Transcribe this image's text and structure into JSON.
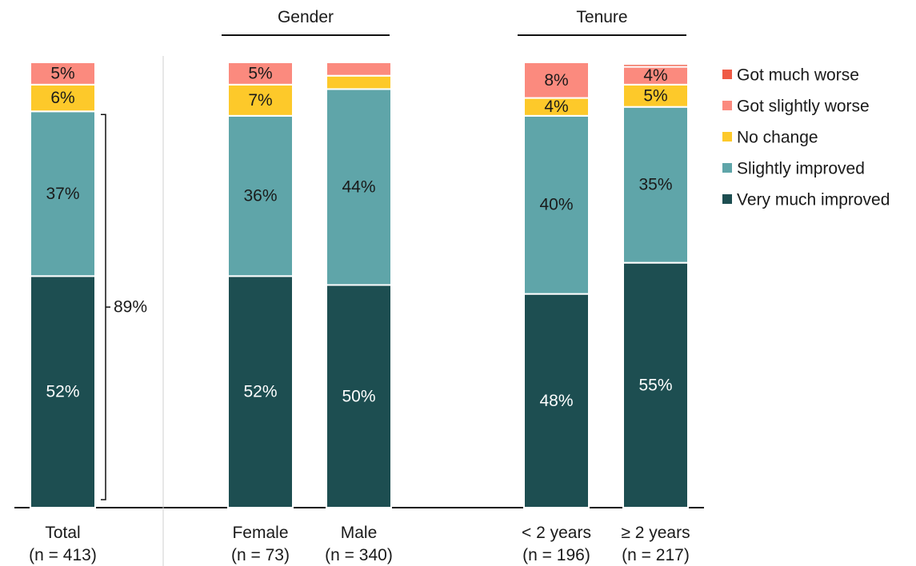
{
  "chart_data": {
    "type": "bar",
    "stacked": true,
    "orientation": "vertical",
    "categories": [
      "Total",
      "Female",
      "Male",
      "< 2 years",
      "≥ 2 years"
    ],
    "category_ns": [
      "(n = 413)",
      "(n = 73)",
      "(n = 340)",
      "(n = 196)",
      "(n = 217)"
    ],
    "groups": [
      {
        "label": "Gender",
        "categories": [
          "Female",
          "Male"
        ]
      },
      {
        "label": "Tenure",
        "categories": [
          "< 2 years",
          "≥ 2 years"
        ]
      }
    ],
    "series": [
      {
        "name": "Very much improved",
        "color": "#1d4e51",
        "values": [
          52,
          52,
          50,
          48,
          55
        ],
        "labels": [
          "52%",
          "52%",
          "50%",
          "48%",
          "55%"
        ]
      },
      {
        "name": "Slightly improved",
        "color": "#5fa5a9",
        "values": [
          37,
          36,
          44,
          40,
          35
        ],
        "labels": [
          "37%",
          "36%",
          "44%",
          "40%",
          "35%"
        ]
      },
      {
        "name": "No change",
        "color": "#fdc92a",
        "values": [
          6,
          7,
          3,
          4,
          5
        ],
        "labels": [
          "6%",
          "7%",
          "",
          "4%",
          "5%"
        ]
      },
      {
        "name": "Got slightly worse",
        "color": "#fb8a7e",
        "values": [
          5,
          5,
          3,
          8,
          4
        ],
        "labels": [
          "5%",
          "5%",
          "",
          "8%",
          "4%"
        ]
      },
      {
        "name": "Got much worse",
        "color": "#ef5a45",
        "values": [
          0,
          0,
          0,
          0,
          0.6
        ],
        "labels": [
          "",
          "",
          "",
          "",
          ""
        ]
      }
    ],
    "legend_order": [
      "Got much worse",
      "Got slightly worse",
      "No change",
      "Slightly improved",
      "Very much improved"
    ],
    "legend_position": "right",
    "bracket": {
      "category": "Total",
      "label": "89%",
      "spans": [
        "Very much improved",
        "Slightly improved"
      ]
    },
    "ylim": [
      0,
      100
    ]
  }
}
